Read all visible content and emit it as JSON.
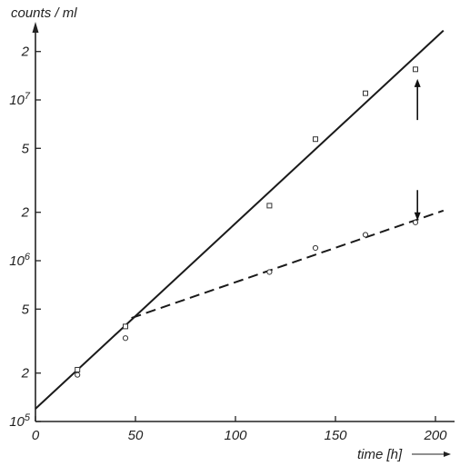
{
  "chart_data": {
    "type": "scatter",
    "title": "",
    "xlabel": "time [h]",
    "ylabel": "counts / ml",
    "xlim": [
      0,
      215
    ],
    "ylim": [
      100000,
      30000000
    ],
    "y_scale": "log",
    "x_ticks": [
      0,
      50,
      100,
      150,
      200
    ],
    "x_tick_labels": [
      "0",
      "50",
      "100",
      "150",
      "200"
    ],
    "y_ticks": [
      {
        "value": 100000,
        "base": "10",
        "exp": "5"
      },
      {
        "value": 200000,
        "label": "2"
      },
      {
        "value": 500000,
        "label": "5"
      },
      {
        "value": 1000000,
        "base": "10",
        "exp": "6"
      },
      {
        "value": 2000000,
        "label": "2"
      },
      {
        "value": 5000000,
        "label": "5"
      },
      {
        "value": 10000000,
        "base": "10",
        "exp": "7"
      },
      {
        "value": 20000000,
        "label": "2"
      }
    ],
    "grid": false,
    "series": [
      {
        "marker": "square",
        "points": [
          {
            "x": 21,
            "y": 210000
          },
          {
            "x": 45,
            "y": 390000
          },
          {
            "x": 117,
            "y": 2200000
          },
          {
            "x": 140,
            "y": 5700000
          },
          {
            "x": 165,
            "y": 11000000
          },
          {
            "x": 190,
            "y": 15500000
          }
        ]
      },
      {
        "marker": "circle",
        "points": [
          {
            "x": 21,
            "y": 195000
          },
          {
            "x": 45,
            "y": 330000
          },
          {
            "x": 117,
            "y": 850000
          },
          {
            "x": 140,
            "y": 1200000
          },
          {
            "x": 165,
            "y": 1450000
          },
          {
            "x": 190,
            "y": 1730000
          }
        ]
      }
    ],
    "fit_lines": [
      {
        "style": "solid",
        "points": [
          {
            "x": 0,
            "y": 120000
          },
          {
            "x": 204,
            "y": 27000000
          }
        ]
      },
      {
        "style": "dashed",
        "points": [
          {
            "x": 48,
            "y": 440000
          },
          {
            "x": 204,
            "y": 2050000
          }
        ]
      }
    ],
    "arrows": [
      {
        "direction": "up",
        "x": 191,
        "y_from": 7500000,
        "y_to": 13000000
      },
      {
        "direction": "down",
        "x": 191,
        "y_from": 2750000,
        "y_to": 1850000
      }
    ]
  }
}
